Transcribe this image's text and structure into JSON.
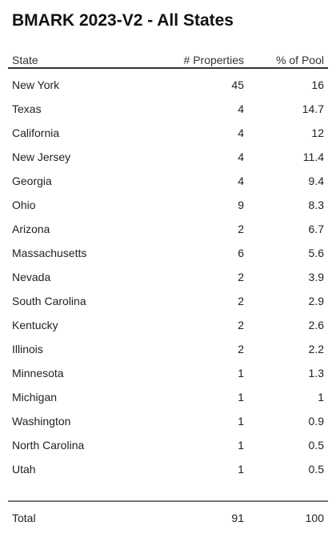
{
  "title": "BMARK 2023-V2 - All States",
  "table": {
    "header": [
      "State",
      "# Properties",
      "% of Pool"
    ],
    "rows": [
      [
        "New York",
        45,
        16
      ],
      [
        "Texas",
        4,
        14.7
      ],
      [
        "California",
        4,
        12
      ],
      [
        "New Jersey",
        4,
        11.4
      ],
      [
        "Georgia",
        4,
        9.4
      ],
      [
        "Ohio",
        9,
        8.3
      ],
      [
        "Arizona",
        2,
        6.7
      ],
      [
        "Massachusetts",
        6,
        5.6
      ],
      [
        "Nevada",
        2,
        3.9
      ],
      [
        "South Carolina",
        2,
        2.9
      ],
      [
        "Kentucky",
        2,
        2.6
      ],
      [
        "Illinois",
        2,
        2.2
      ],
      [
        "Minnesota",
        1,
        1.3
      ],
      [
        "Michigan",
        1,
        1
      ],
      [
        "Washington",
        1,
        0.9
      ],
      [
        "North Carolina",
        1,
        0.5
      ],
      [
        "Utah",
        1,
        0.5
      ]
    ],
    "total": [
      "Total",
      91,
      100
    ]
  }
}
